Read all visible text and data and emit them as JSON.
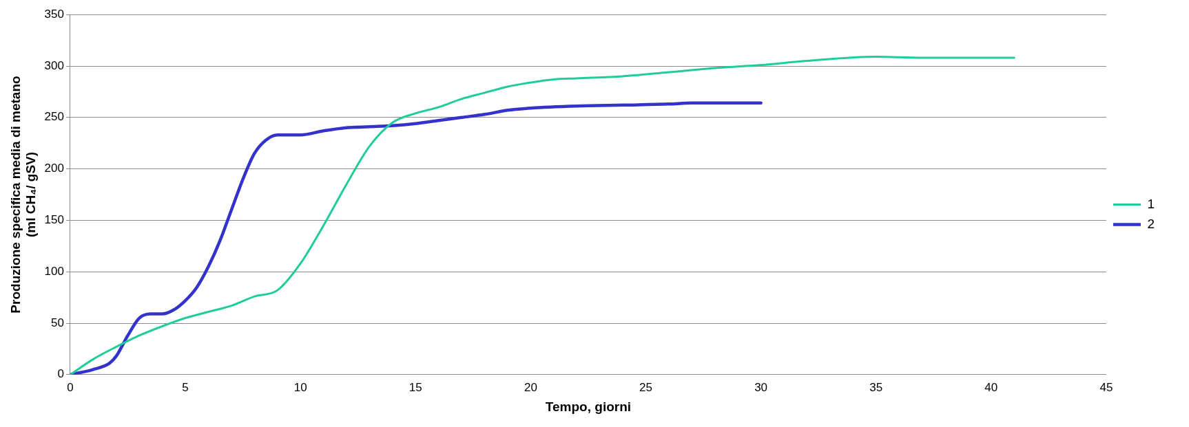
{
  "chart_data": {
    "type": "line",
    "xlabel": "Tempo, giorni",
    "ylabel": "Produzione specifica media di metano\n(ml CH₄/ gSV)",
    "xlim": [
      0,
      45
    ],
    "xticks": [
      0,
      5,
      10,
      15,
      20,
      25,
      30,
      35,
      40,
      45
    ],
    "ylim": [
      0,
      350
    ],
    "yticks": [
      0,
      50,
      100,
      150,
      200,
      250,
      300,
      350
    ],
    "grid": "y",
    "legend": "right",
    "marker": "none",
    "line_style": "solid",
    "series": [
      {
        "name": "1",
        "color": "#1fcc9a",
        "x": [
          0,
          1,
          2,
          3,
          4,
          5,
          6,
          7,
          8,
          9,
          10,
          11,
          12,
          13,
          14,
          15,
          16,
          17,
          18,
          19,
          20,
          21,
          22,
          24,
          26,
          28,
          30,
          32,
          35,
          37,
          41
        ],
        "values": [
          0,
          15,
          27,
          38,
          47,
          55,
          61,
          67,
          76,
          82,
          108,
          145,
          185,
          222,
          245,
          254,
          260,
          268,
          274,
          280,
          284,
          287,
          288,
          290,
          294,
          298,
          301,
          305,
          309,
          308,
          308
        ]
      },
      {
        "name": "2",
        "color": "#3333cc",
        "x": [
          0,
          1,
          1.7,
          2,
          2.5,
          3,
          3.5,
          4,
          4.5,
          5,
          5.5,
          6,
          6.5,
          7,
          7.5,
          8,
          8.5,
          9,
          9.5,
          10,
          11,
          12,
          13,
          14,
          15,
          16,
          17,
          18,
          19,
          20,
          22,
          24,
          26,
          27,
          30
        ],
        "values": [
          0,
          5,
          11,
          18,
          38,
          55,
          59,
          59,
          63,
          72,
          85,
          105,
          130,
          160,
          190,
          215,
          228,
          233,
          233,
          233,
          237,
          240,
          241,
          242,
          244,
          247,
          250,
          253,
          257,
          259,
          261,
          262,
          263,
          264,
          264
        ]
      }
    ]
  }
}
